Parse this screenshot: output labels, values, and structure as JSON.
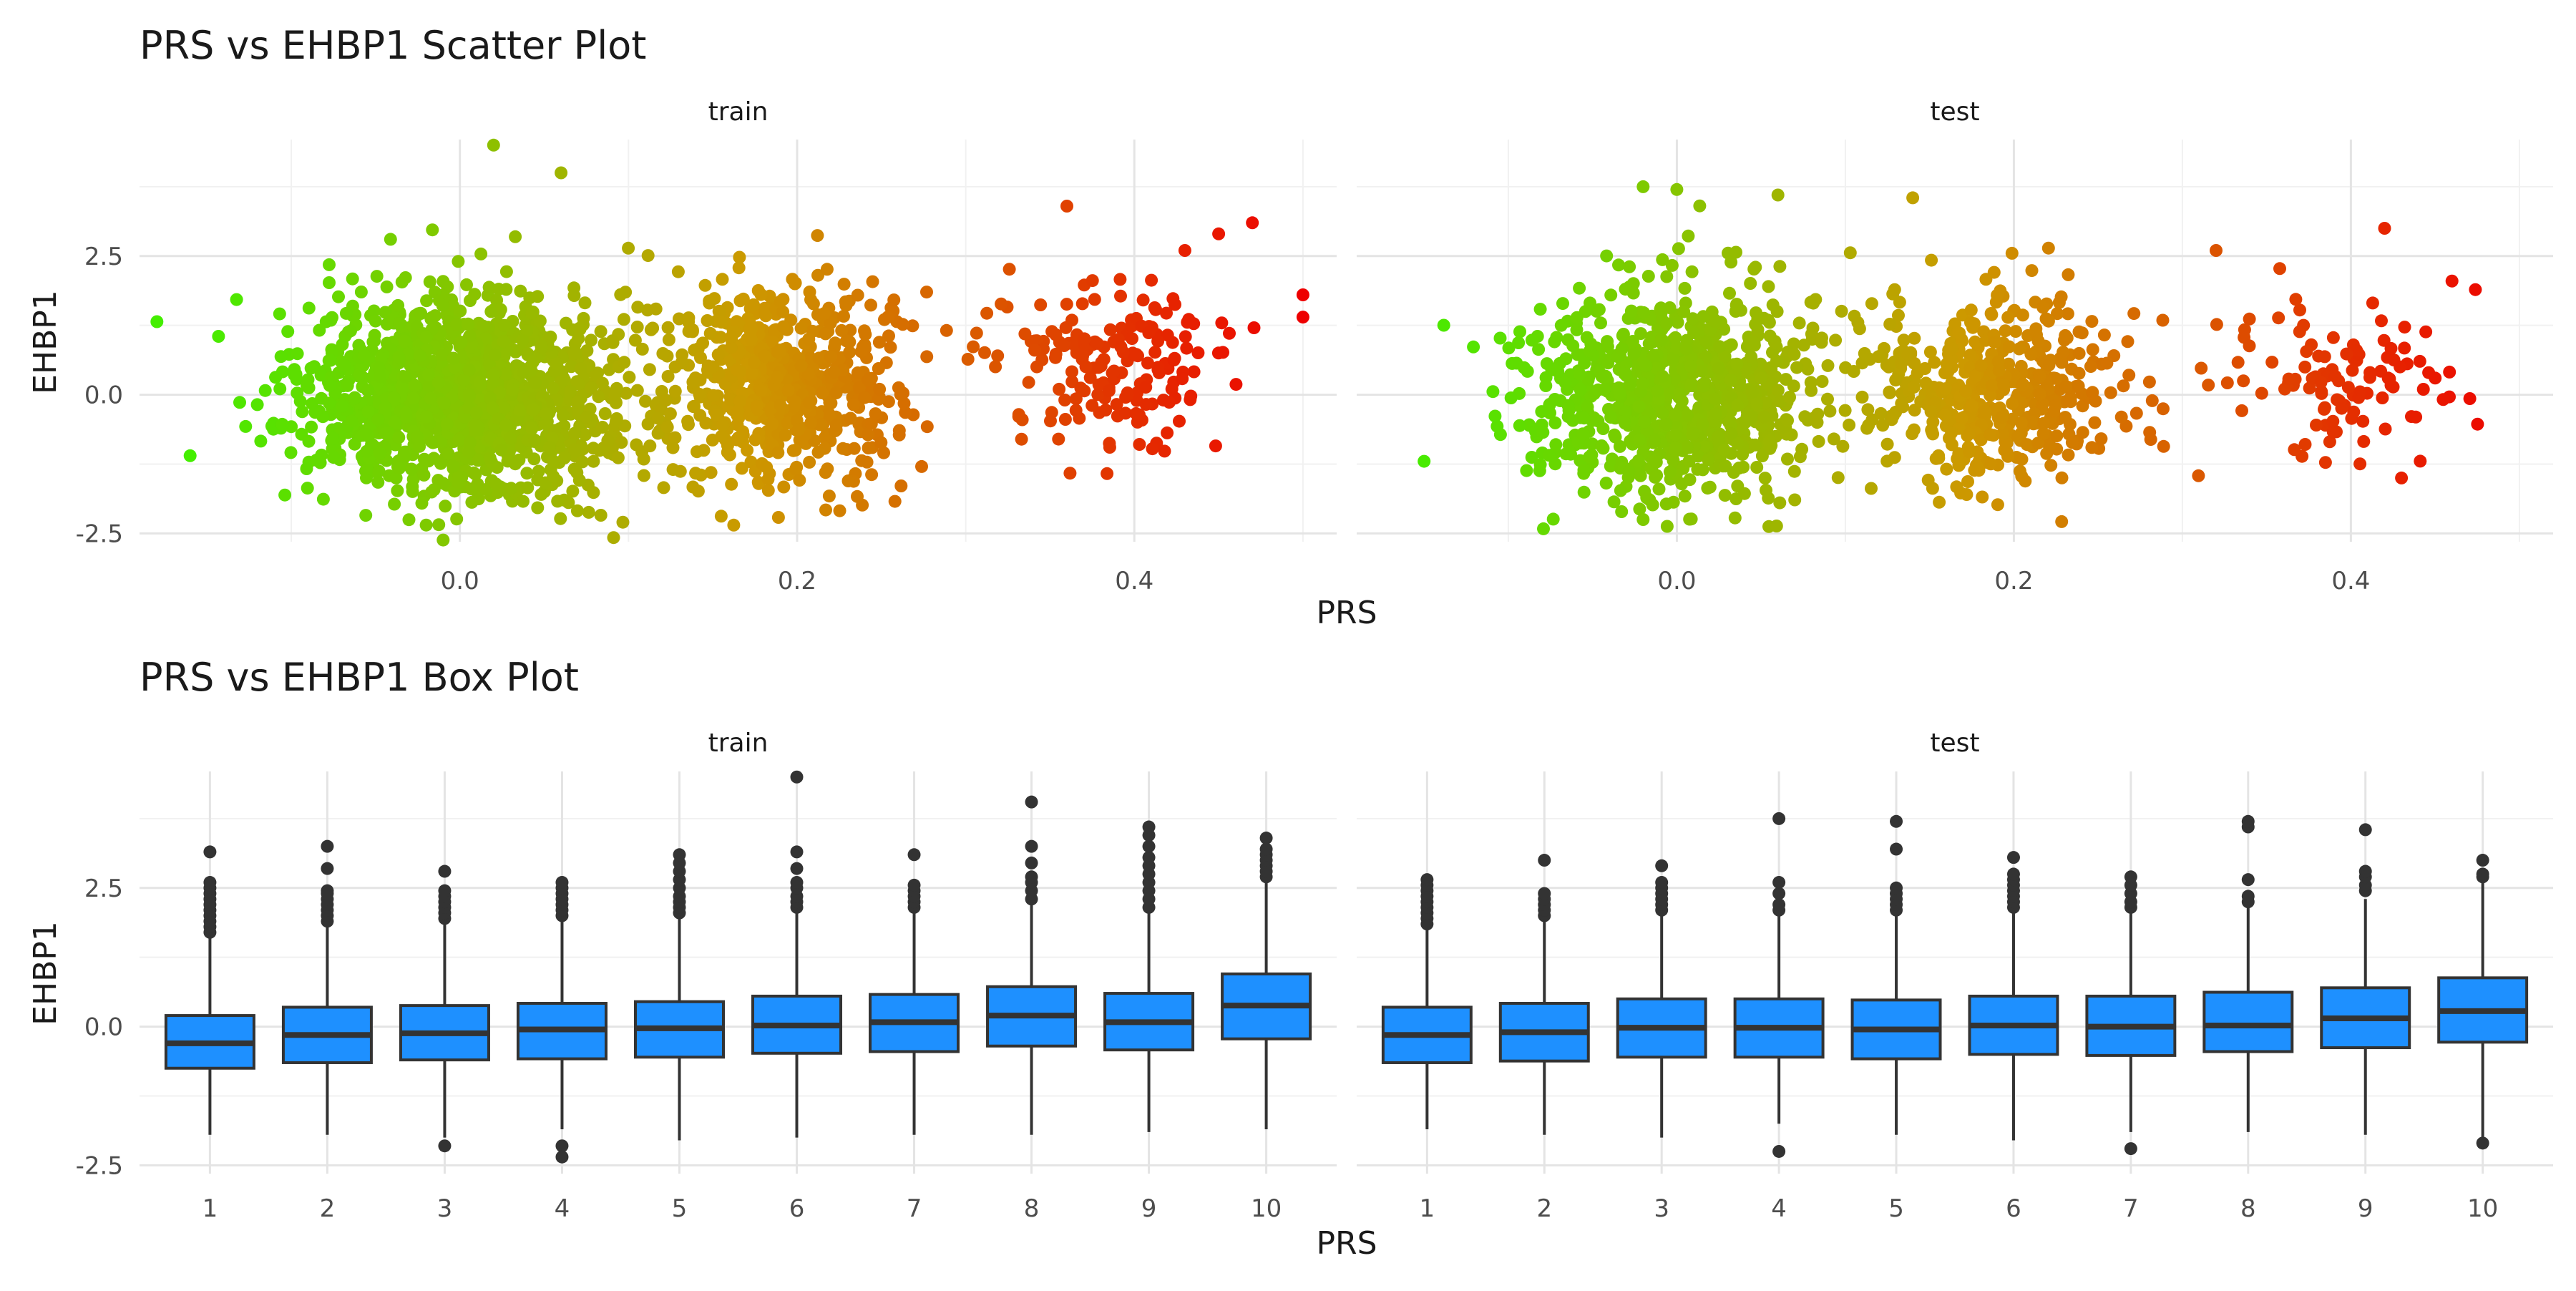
{
  "chart_data": [
    {
      "type": "scatter",
      "title": "PRS vs EHBP1 Scatter Plot",
      "xlabel": "PRS",
      "ylabel": "EHBP1",
      "facets": [
        "train",
        "test"
      ],
      "xlim": [
        -0.19,
        0.52
      ],
      "ylim": [
        -2.65,
        4.6
      ],
      "x_ticks": [
        0.0,
        0.2,
        0.4
      ],
      "x_tick_labels": [
        "0.0",
        "0.2",
        "0.4"
      ],
      "y_ticks": [
        -2.5,
        0.0,
        2.5
      ],
      "y_tick_labels": [
        "-2.5",
        "0.0",
        "2.5"
      ],
      "grid": true,
      "color_scale": {
        "low": "#44ee00",
        "mid": "#cc9900",
        "high": "#ee0000",
        "mapped_to": "PRS"
      },
      "series": [
        {
          "facet": "train",
          "clusters": [
            {
              "x_mean": 0.0,
              "x_sd": 0.045,
              "y_mean": 0.0,
              "y_sd": 0.9,
              "n": 1400
            },
            {
              "x_mean": 0.19,
              "x_sd": 0.035,
              "y_mean": 0.2,
              "y_sd": 0.9,
              "n": 650
            },
            {
              "x_mean": 0.39,
              "x_sd": 0.035,
              "y_mean": 0.5,
              "y_sd": 0.75,
              "n": 180
            }
          ],
          "points": [
            [
              -0.16,
              -1.1
            ],
            [
              0.02,
              4.5
            ],
            [
              0.06,
              4.0
            ],
            [
              0.5,
              1.8
            ],
            [
              0.5,
              1.4
            ],
            [
              0.47,
              3.1
            ],
            [
              0.45,
              2.9
            ],
            [
              0.36,
              3.4
            ],
            [
              -0.02,
              -2.35
            ],
            [
              0.43,
              2.6
            ]
          ]
        },
        {
          "facet": "test",
          "clusters": [
            {
              "x_mean": 0.0,
              "x_sd": 0.045,
              "y_mean": 0.0,
              "y_sd": 0.9,
              "n": 900
            },
            {
              "x_mean": 0.19,
              "x_sd": 0.035,
              "y_mean": 0.1,
              "y_sd": 0.85,
              "n": 450
            },
            {
              "x_mean": 0.39,
              "x_sd": 0.035,
              "y_mean": 0.2,
              "y_sd": 0.7,
              "n": 110
            }
          ],
          "points": [
            [
              -0.15,
              -1.2
            ],
            [
              -0.02,
              3.75
            ],
            [
              0.0,
              3.7
            ],
            [
              0.06,
              3.6
            ],
            [
              0.14,
              3.55
            ],
            [
              0.42,
              3.0
            ],
            [
              0.46,
              2.05
            ],
            [
              0.32,
              2.6
            ],
            [
              -0.02,
              -2.25
            ],
            [
              0.43,
              -1.5
            ],
            [
              0.45,
              0.3
            ]
          ]
        }
      ]
    },
    {
      "type": "box",
      "title": "PRS vs EHBP1 Box Plot",
      "xlabel": "PRS",
      "ylabel": "EHBP1",
      "facets": [
        "train",
        "test"
      ],
      "categories": [
        "1",
        "2",
        "3",
        "4",
        "5",
        "6",
        "7",
        "8",
        "9",
        "10"
      ],
      "ylim": [
        -2.65,
        4.6
      ],
      "y_ticks": [
        -2.5,
        0.0,
        2.5
      ],
      "y_tick_labels": [
        "-2.5",
        "0.0",
        "2.5"
      ],
      "grid": true,
      "box_fill": "#1e90ff",
      "series": [
        {
          "facet": "train",
          "boxes": [
            {
              "q1": -0.75,
              "median": -0.3,
              "q3": 0.2,
              "whisker_low": -1.95,
              "whisker_high": 1.65,
              "outliers": [
                1.7,
                1.8,
                1.9,
                2.0,
                2.1,
                2.2,
                2.3,
                2.4,
                2.5,
                2.6,
                3.15
              ]
            },
            {
              "q1": -0.65,
              "median": -0.15,
              "q3": 0.35,
              "whisker_low": -1.95,
              "whisker_high": 1.85,
              "outliers": [
                1.9,
                2.0,
                2.1,
                2.2,
                2.3,
                2.4,
                2.45,
                2.85,
                3.25
              ]
            },
            {
              "q1": -0.6,
              "median": -0.12,
              "q3": 0.38,
              "whisker_low": -2.0,
              "whisker_high": 1.85,
              "outliers": [
                1.95,
                2.05,
                2.15,
                2.25,
                2.35,
                2.45,
                2.8,
                -2.15
              ]
            },
            {
              "q1": -0.58,
              "median": -0.05,
              "q3": 0.42,
              "whisker_low": -1.85,
              "whisker_high": 1.95,
              "outliers": [
                2.0,
                2.1,
                2.2,
                2.3,
                2.4,
                2.5,
                2.6,
                -2.15,
                -2.35
              ]
            },
            {
              "q1": -0.55,
              "median": -0.03,
              "q3": 0.45,
              "whisker_low": -2.05,
              "whisker_high": 1.95,
              "outliers": [
                2.05,
                2.15,
                2.25,
                2.35,
                2.5,
                2.65,
                2.8,
                2.95,
                3.1
              ]
            },
            {
              "q1": -0.48,
              "median": 0.02,
              "q3": 0.55,
              "whisker_low": -2.0,
              "whisker_high": 2.05,
              "outliers": [
                2.15,
                2.25,
                2.35,
                2.5,
                2.6,
                2.85,
                3.15,
                4.5
              ]
            },
            {
              "q1": -0.45,
              "median": 0.08,
              "q3": 0.58,
              "whisker_low": -1.95,
              "whisker_high": 2.05,
              "outliers": [
                2.15,
                2.25,
                2.35,
                2.45,
                2.55,
                3.1
              ]
            },
            {
              "q1": -0.35,
              "median": 0.2,
              "q3": 0.72,
              "whisker_low": -1.95,
              "whisker_high": 2.2,
              "outliers": [
                2.3,
                2.45,
                2.6,
                2.7,
                2.95,
                3.25,
                4.05
              ]
            },
            {
              "q1": -0.42,
              "median": 0.08,
              "q3": 0.6,
              "whisker_low": -1.9,
              "whisker_high": 2.05,
              "outliers": [
                2.15,
                2.3,
                2.45,
                2.6,
                2.75,
                2.9,
                3.05,
                3.25,
                3.45,
                3.6
              ]
            },
            {
              "q1": -0.22,
              "median": 0.38,
              "q3": 0.95,
              "whisker_low": -1.85,
              "whisker_high": 2.6,
              "outliers": [
                2.7,
                2.8,
                2.9,
                3.0,
                3.1,
                3.2,
                3.4
              ]
            }
          ]
        },
        {
          "facet": "test",
          "boxes": [
            {
              "q1": -0.65,
              "median": -0.15,
              "q3": 0.35,
              "whisker_low": -1.85,
              "whisker_high": 1.75,
              "outliers": [
                1.85,
                1.95,
                2.05,
                2.15,
                2.25,
                2.35,
                2.45,
                2.55,
                2.65
              ]
            },
            {
              "q1": -0.62,
              "median": -0.1,
              "q3": 0.42,
              "whisker_low": -1.95,
              "whisker_high": 1.9,
              "outliers": [
                2.0,
                2.1,
                2.2,
                2.3,
                2.4,
                3.0
              ]
            },
            {
              "q1": -0.55,
              "median": -0.02,
              "q3": 0.5,
              "whisker_low": -2.0,
              "whisker_high": 2.0,
              "outliers": [
                2.1,
                2.2,
                2.3,
                2.4,
                2.5,
                2.6,
                2.9
              ]
            },
            {
              "q1": -0.55,
              "median": -0.02,
              "q3": 0.5,
              "whisker_low": -1.75,
              "whisker_high": 2.0,
              "outliers": [
                2.1,
                2.2,
                2.4,
                2.6,
                3.75,
                -2.25
              ]
            },
            {
              "q1": -0.58,
              "median": -0.05,
              "q3": 0.48,
              "whisker_low": -1.95,
              "whisker_high": 2.0,
              "outliers": [
                2.1,
                2.2,
                2.3,
                2.4,
                2.5,
                3.2,
                3.7
              ]
            },
            {
              "q1": -0.5,
              "median": 0.02,
              "q3": 0.55,
              "whisker_low": -2.05,
              "whisker_high": 2.05,
              "outliers": [
                2.15,
                2.25,
                2.35,
                2.45,
                2.55,
                2.65,
                2.75,
                3.05
              ]
            },
            {
              "q1": -0.52,
              "median": 0.0,
              "q3": 0.55,
              "whisker_low": -1.9,
              "whisker_high": 2.05,
              "outliers": [
                2.15,
                2.25,
                2.4,
                2.55,
                2.7,
                -2.2
              ]
            },
            {
              "q1": -0.45,
              "median": 0.02,
              "q3": 0.62,
              "whisker_low": -1.9,
              "whisker_high": 2.15,
              "outliers": [
                2.25,
                2.35,
                2.65,
                3.6,
                3.7
              ]
            },
            {
              "q1": -0.38,
              "median": 0.15,
              "q3": 0.7,
              "whisker_low": -1.95,
              "whisker_high": 2.3,
              "outliers": [
                2.45,
                2.55,
                2.7,
                2.8,
                3.55
              ]
            },
            {
              "q1": -0.28,
              "median": 0.28,
              "q3": 0.88,
              "whisker_low": -2.0,
              "whisker_high": 2.6,
              "outliers": [
                2.7,
                2.75,
                3.0,
                -2.1
              ]
            }
          ]
        }
      ]
    }
  ]
}
